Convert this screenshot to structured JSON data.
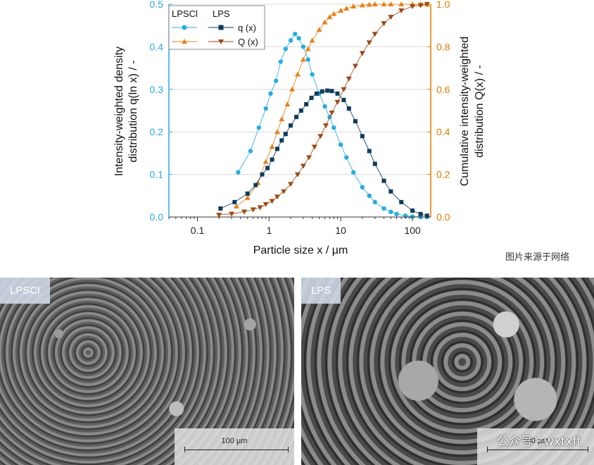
{
  "chart_data": {
    "type": "scatter",
    "x_scale": "log",
    "xlabel": "Particle size x / µm",
    "ylabel_left": "Intensity-weighted density distribution q(ln x) / -",
    "ylabel_right": "Cumulative intensity-weighted distribution Q(x) / -",
    "ylabel_left_lines": [
      "Intensity-weighted density",
      "distribution q(ln x) / -"
    ],
    "ylabel_right_lines": [
      "Cumulative intensity-weighted",
      "distribution Q(x) / -"
    ],
    "xlim": [
      0.04,
      180
    ],
    "ylim_left": [
      0,
      0.5
    ],
    "ylim_right": [
      0,
      1.0
    ],
    "x_ticks": [
      0.1,
      1,
      10,
      100
    ],
    "x_tick_labels": [
      "0.1",
      "1",
      "10",
      "100"
    ],
    "y_left_ticks": [
      "0.0",
      "0.1",
      "0.2",
      "0.3",
      "0.4",
      "0.5"
    ],
    "y_right_ticks": [
      "0.0",
      "0.2",
      "0.4",
      "0.6",
      "0.8",
      "1.0"
    ],
    "grid": "horizontal",
    "legend": {
      "placement": "top-left",
      "groups": [
        "LPSCl",
        "LPS"
      ],
      "rows": [
        "q (x)",
        "Q (x)"
      ]
    },
    "colors": {
      "lpscl_q": "#29abe2",
      "lpscl_Q": "#e8801a",
      "lps_q": "#0d3b5c",
      "lps_Q": "#9c4a14",
      "left_axis": "#29abe2",
      "right_axis": "#e07b00"
    },
    "series": [
      {
        "name": "LPSCl q (x)",
        "axis": "left",
        "marker": "circle",
        "x": [
          0.37,
          0.55,
          0.72,
          0.9,
          1.05,
          1.25,
          1.45,
          1.7,
          2.0,
          2.3,
          2.6,
          3.0,
          3.5,
          4.0,
          5.0,
          6.0,
          7.0,
          8.0,
          10,
          12,
          15,
          20,
          25,
          30,
          40,
          50,
          60,
          80,
          100,
          130,
          160
        ],
        "y": [
          0.105,
          0.155,
          0.21,
          0.255,
          0.29,
          0.32,
          0.365,
          0.395,
          0.415,
          0.43,
          0.42,
          0.4,
          0.37,
          0.335,
          0.29,
          0.26,
          0.235,
          0.21,
          0.17,
          0.14,
          0.105,
          0.07,
          0.05,
          0.035,
          0.02,
          0.012,
          0.007,
          0.003,
          0.001,
          0.0,
          0.0
        ]
      },
      {
        "name": "LPSCl Q (x)",
        "axis": "right",
        "marker": "triangle-up",
        "x": [
          0.35,
          0.5,
          0.7,
          0.9,
          1.1,
          1.3,
          1.5,
          1.8,
          2.1,
          2.5,
          3.0,
          3.5,
          4.0,
          5.0,
          6.0,
          7.0,
          8.0,
          10,
          12,
          15,
          20,
          25,
          30,
          40,
          50,
          70,
          100,
          130,
          160
        ],
        "y": [
          0.05,
          0.09,
          0.16,
          0.26,
          0.33,
          0.4,
          0.46,
          0.53,
          0.6,
          0.67,
          0.74,
          0.79,
          0.83,
          0.88,
          0.915,
          0.94,
          0.955,
          0.97,
          0.98,
          0.99,
          0.995,
          0.998,
          1.0,
          1.0,
          1.0,
          1.0,
          1.0,
          1.0,
          1.0
        ]
      },
      {
        "name": "LPS q (x)",
        "axis": "left",
        "marker": "square",
        "x": [
          0.21,
          0.33,
          0.5,
          0.65,
          0.8,
          0.95,
          1.1,
          1.3,
          1.5,
          1.7,
          2.0,
          2.4,
          2.8,
          3.3,
          3.9,
          4.6,
          5.5,
          6.5,
          7.5,
          9.0,
          11,
          13,
          16,
          20,
          25,
          30,
          40,
          50,
          70,
          100,
          130,
          160
        ],
        "y": [
          0.02,
          0.035,
          0.055,
          0.075,
          0.1,
          0.115,
          0.135,
          0.16,
          0.18,
          0.195,
          0.215,
          0.235,
          0.25,
          0.265,
          0.28,
          0.29,
          0.295,
          0.297,
          0.296,
          0.29,
          0.275,
          0.255,
          0.225,
          0.19,
          0.155,
          0.125,
          0.085,
          0.06,
          0.035,
          0.015,
          0.007,
          0.003
        ]
      },
      {
        "name": "LPS Q (x)",
        "axis": "right",
        "marker": "triangle-down",
        "x": [
          0.2,
          0.3,
          0.45,
          0.6,
          0.75,
          0.9,
          1.1,
          1.3,
          1.6,
          2.0,
          2.5,
          3.0,
          3.6,
          4.3,
          5.2,
          6.2,
          7.5,
          9.0,
          11,
          13,
          16,
          20,
          25,
          30,
          40,
          50,
          70,
          100,
          130,
          160
        ],
        "y": [
          0.01,
          0.015,
          0.025,
          0.035,
          0.045,
          0.06,
          0.075,
          0.095,
          0.12,
          0.155,
          0.2,
          0.24,
          0.28,
          0.33,
          0.38,
          0.43,
          0.49,
          0.54,
          0.6,
          0.65,
          0.71,
          0.77,
          0.82,
          0.86,
          0.91,
          0.94,
          0.97,
          0.99,
          0.995,
          1.0
        ]
      }
    ]
  },
  "source_note": "图片来源于网络",
  "images": [
    {
      "label": "LPSCl",
      "scale_bar": "100 µm"
    },
    {
      "label": "LPS",
      "scale_bar": "100 µm"
    }
  ],
  "watermark": "公众号 · wxtxft"
}
